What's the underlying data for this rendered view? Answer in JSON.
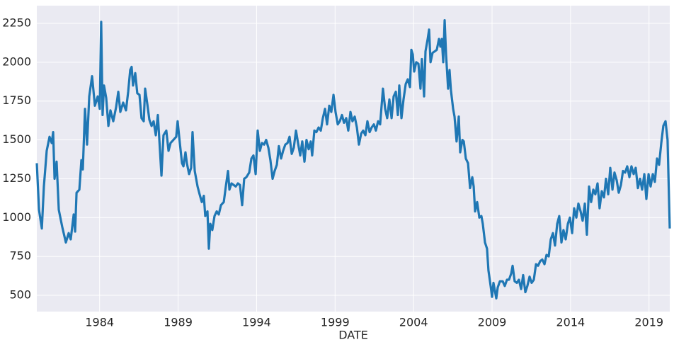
{
  "chart_data": {
    "type": "line",
    "x_label": "DATE",
    "x": [
      1980.0,
      1980.14,
      1980.32,
      1980.45,
      1980.63,
      1980.81,
      1980.95,
      1981.04,
      1981.13,
      1981.26,
      1981.4,
      1981.62,
      1981.85,
      1982.03,
      1982.16,
      1982.35,
      1982.44,
      1982.53,
      1982.71,
      1982.84,
      1982.93,
      1983.07,
      1983.2,
      1983.34,
      1983.52,
      1983.7,
      1983.88,
      1984.01,
      1984.1,
      1984.19,
      1984.28,
      1984.42,
      1984.56,
      1984.69,
      1984.87,
      1985.05,
      1985.19,
      1985.32,
      1985.5,
      1985.68,
      1985.82,
      1985.95,
      1986.04,
      1986.13,
      1986.27,
      1986.4,
      1986.54,
      1986.67,
      1986.81,
      1986.9,
      1987.04,
      1987.17,
      1987.31,
      1987.44,
      1987.58,
      1987.71,
      1987.8,
      1987.94,
      1988.07,
      1988.25,
      1988.39,
      1988.52,
      1988.7,
      1988.88,
      1988.97,
      1989.11,
      1989.25,
      1989.34,
      1989.47,
      1989.56,
      1989.7,
      1989.83,
      1989.92,
      1990.06,
      1990.24,
      1990.37,
      1990.51,
      1990.64,
      1990.73,
      1990.87,
      1990.96,
      1991.05,
      1991.18,
      1991.32,
      1991.46,
      1991.59,
      1991.73,
      1991.91,
      1992.04,
      1992.18,
      1992.27,
      1992.4,
      1992.54,
      1992.67,
      1992.81,
      1992.94,
      1993.08,
      1993.21,
      1993.35,
      1993.53,
      1993.67,
      1993.8,
      1993.94,
      1994.07,
      1994.21,
      1994.34,
      1994.48,
      1994.61,
      1994.75,
      1994.88,
      1995.02,
      1995.15,
      1995.29,
      1995.42,
      1995.56,
      1995.69,
      1995.83,
      1995.97,
      1996.1,
      1996.24,
      1996.37,
      1996.51,
      1996.64,
      1996.78,
      1996.91,
      1997.05,
      1997.18,
      1997.32,
      1997.45,
      1997.54,
      1997.68,
      1997.81,
      1997.95,
      1998.09,
      1998.22,
      1998.36,
      1998.49,
      1998.63,
      1998.76,
      1998.9,
      1999.03,
      1999.17,
      1999.3,
      1999.44,
      1999.57,
      1999.71,
      1999.84,
      1999.98,
      2000.11,
      2000.25,
      2000.39,
      2000.52,
      2000.66,
      2000.79,
      2000.93,
      2001.06,
      2001.2,
      2001.33,
      2001.47,
      2001.6,
      2001.74,
      2001.87,
      2002.05,
      2002.19,
      2002.32,
      2002.46,
      2002.6,
      2002.73,
      2002.87,
      2003.0,
      2003.09,
      2003.23,
      2003.36,
      2003.5,
      2003.63,
      2003.77,
      2003.86,
      2003.95,
      2004.04,
      2004.17,
      2004.31,
      2004.44,
      2004.53,
      2004.67,
      2004.76,
      2004.9,
      2004.99,
      2005.08,
      2005.21,
      2005.35,
      2005.48,
      2005.62,
      2005.71,
      2005.8,
      2005.89,
      2005.98,
      2006.07,
      2006.2,
      2006.29,
      2006.38,
      2006.52,
      2006.61,
      2006.74,
      2006.88,
      2006.97,
      2007.11,
      2007.2,
      2007.33,
      2007.47,
      2007.6,
      2007.74,
      2007.83,
      2007.92,
      2008.05,
      2008.19,
      2008.32,
      2008.41,
      2008.55,
      2008.68,
      2008.77,
      2008.91,
      2009.0,
      2009.09,
      2009.18,
      2009.27,
      2009.36,
      2009.5,
      2009.68,
      2009.81,
      2009.95,
      2010.08,
      2010.22,
      2010.31,
      2010.44,
      2010.58,
      2010.71,
      2010.85,
      2010.98,
      2011.12,
      2011.25,
      2011.39,
      2011.52,
      2011.66,
      2011.8,
      2011.93,
      2012.07,
      2012.2,
      2012.34,
      2012.47,
      2012.61,
      2012.74,
      2012.88,
      2013.01,
      2013.15,
      2013.28,
      2013.42,
      2013.55,
      2013.69,
      2013.83,
      2013.96,
      2014.1,
      2014.23,
      2014.37,
      2014.5,
      2014.64,
      2014.77,
      2014.91,
      2015.04,
      2015.18,
      2015.31,
      2015.45,
      2015.58,
      2015.72,
      2015.85,
      2015.99,
      2016.13,
      2016.26,
      2016.4,
      2016.53,
      2016.67,
      2016.8,
      2016.94,
      2017.07,
      2017.21,
      2017.34,
      2017.48,
      2017.61,
      2017.75,
      2017.88,
      2018.02,
      2018.15,
      2018.29,
      2018.43,
      2018.56,
      2018.7,
      2018.83,
      2018.97,
      2019.1,
      2019.24,
      2019.37,
      2019.51,
      2019.64,
      2019.78,
      2019.91,
      2020.05,
      2020.18,
      2020.32
    ],
    "values": [
      1350,
      1050,
      930,
      1200,
      1430,
      1520,
      1480,
      1550,
      1250,
      1360,
      1050,
      940,
      840,
      900,
      860,
      1020,
      910,
      1160,
      1180,
      1370,
      1310,
      1700,
      1470,
      1780,
      1910,
      1720,
      1780,
      1700,
      2260,
      1660,
      1850,
      1770,
      1590,
      1690,
      1620,
      1710,
      1810,
      1680,
      1740,
      1690,
      1810,
      1950,
      1970,
      1850,
      1930,
      1800,
      1790,
      1640,
      1620,
      1830,
      1730,
      1630,
      1590,
      1620,
      1530,
      1660,
      1510,
      1270,
      1530,
      1560,
      1430,
      1480,
      1500,
      1520,
      1620,
      1480,
      1350,
      1330,
      1420,
      1350,
      1280,
      1320,
      1550,
      1300,
      1200,
      1150,
      1100,
      1140,
      1010,
      1040,
      800,
      960,
      920,
      1010,
      1040,
      1020,
      1080,
      1100,
      1200,
      1300,
      1180,
      1220,
      1210,
      1200,
      1220,
      1210,
      1080,
      1250,
      1260,
      1290,
      1380,
      1400,
      1280,
      1560,
      1430,
      1480,
      1470,
      1500,
      1450,
      1370,
      1250,
      1300,
      1340,
      1460,
      1380,
      1430,
      1470,
      1480,
      1520,
      1410,
      1450,
      1560,
      1480,
      1400,
      1490,
      1360,
      1500,
      1440,
      1490,
      1400,
      1560,
      1550,
      1580,
      1560,
      1640,
      1700,
      1600,
      1720,
      1680,
      1790,
      1680,
      1600,
      1620,
      1660,
      1610,
      1640,
      1560,
      1680,
      1620,
      1650,
      1580,
      1470,
      1540,
      1560,
      1530,
      1620,
      1550,
      1580,
      1600,
      1560,
      1620,
      1600,
      1830,
      1700,
      1640,
      1760,
      1640,
      1780,
      1810,
      1660,
      1850,
      1640,
      1760,
      1860,
      1890,
      1840,
      2080,
      2050,
      1940,
      2000,
      1990,
      1830,
      2020,
      1780,
      2070,
      2150,
      2210,
      2000,
      2060,
      2070,
      2080,
      2150,
      2100,
      2150,
      2000,
      2270,
      2050,
      1830,
      1950,
      1820,
      1700,
      1650,
      1490,
      1650,
      1420,
      1500,
      1490,
      1380,
      1350,
      1190,
      1260,
      1200,
      1040,
      1100,
      1000,
      1010,
      960,
      840,
      800,
      660,
      560,
      490,
      580,
      530,
      480,
      550,
      590,
      590,
      560,
      600,
      600,
      640,
      690,
      590,
      580,
      600,
      540,
      630,
      520,
      560,
      620,
      580,
      600,
      700,
      690,
      720,
      730,
      700,
      760,
      750,
      860,
      900,
      820,
      960,
      1010,
      840,
      920,
      860,
      960,
      1000,
      900,
      1060,
      1000,
      1090,
      1040,
      980,
      1090,
      890,
      1200,
      1100,
      1180,
      1150,
      1220,
      1060,
      1170,
      1130,
      1250,
      1150,
      1320,
      1180,
      1290,
      1240,
      1160,
      1210,
      1300,
      1290,
      1330,
      1260,
      1330,
      1280,
      1320,
      1190,
      1250,
      1180,
      1280,
      1120,
      1280,
      1200,
      1280,
      1230,
      1380,
      1340,
      1480,
      1590,
      1620,
      1500,
      930
    ],
    "color": "#1f77b4",
    "xlim": [
      1980,
      2020.32
    ],
    "xticks": [
      1984,
      1989,
      1994,
      1999,
      2004,
      2009,
      2014,
      2019
    ],
    "ylim": [
      395,
      2364
    ],
    "yticks": [
      500,
      750,
      1000,
      1250,
      1500,
      1750,
      2000,
      2250
    ],
    "grid": true
  }
}
